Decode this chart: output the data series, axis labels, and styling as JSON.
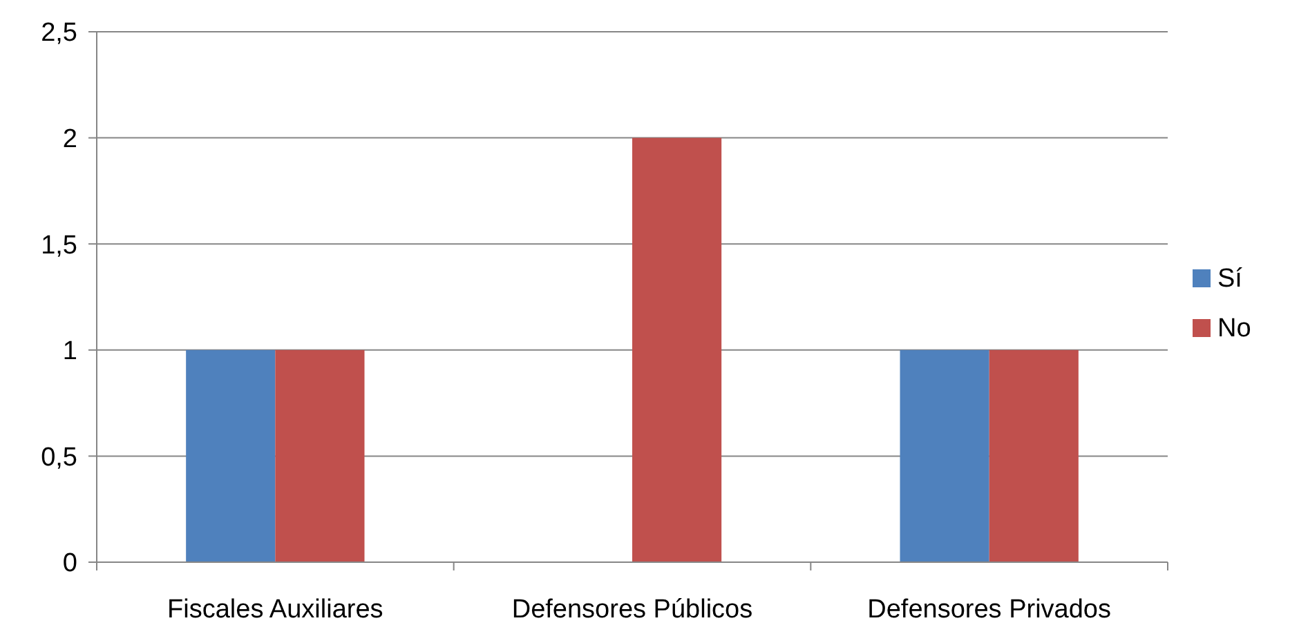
{
  "chart_data": {
    "type": "bar",
    "categories": [
      "Fiscales Auxiliares",
      "Defensores Públicos",
      "Defensores Privados"
    ],
    "series": [
      {
        "name": "Sí",
        "color": "#4f81bd",
        "values": [
          1,
          0,
          1
        ]
      },
      {
        "name": "No",
        "color": "#c0504d",
        "values": [
          1,
          2,
          1
        ]
      }
    ],
    "ylim": [
      0,
      2.5
    ],
    "yticks": [
      0,
      {
        "value": 0.5,
        "label": "0,5"
      },
      1,
      {
        "value": 1.5,
        "label": "1,5"
      },
      2,
      {
        "value": 2.5,
        "label": "2,5"
      }
    ],
    "grid": "y",
    "legend": "right"
  }
}
